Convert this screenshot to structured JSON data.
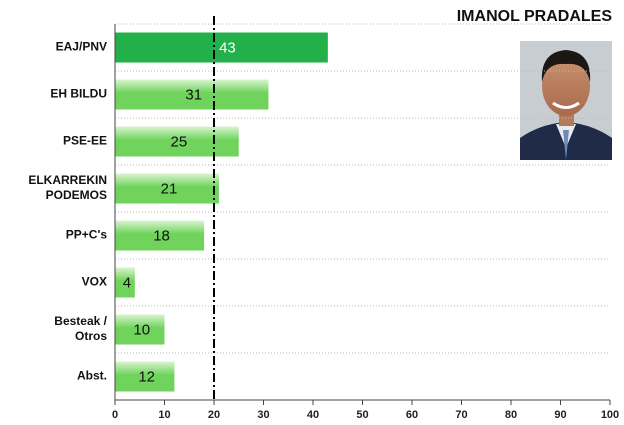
{
  "chart_data": {
    "type": "hbar",
    "title": "IMANOL PRADALES",
    "categories": [
      [
        "EAJ/PNV"
      ],
      [
        "EH BILDU"
      ],
      [
        "PSE-EE"
      ],
      [
        "ELKARREKIN",
        "PODEMOS"
      ],
      [
        "PP+C's"
      ],
      [
        "VOX"
      ],
      [
        "Besteak /",
        "Otros"
      ],
      [
        "Abst."
      ]
    ],
    "values": [
      43,
      31,
      25,
      21,
      18,
      4,
      10,
      12
    ],
    "colors": [
      "#22b04b",
      "#6fd35c",
      "#6fd35c",
      "#6fd35c",
      "#6fd35c",
      "#6fd35c",
      "#6fd35c",
      "#6fd35c"
    ],
    "label_colors": [
      "#ffffff",
      "#111111",
      "#111111",
      "#111111",
      "#111111",
      "#111111",
      "#111111",
      "#111111"
    ],
    "xlim": [
      0,
      100
    ],
    "xticks": [
      0,
      10,
      20,
      30,
      40,
      50,
      60,
      70,
      80,
      90,
      100
    ],
    "reference_line": 20
  }
}
